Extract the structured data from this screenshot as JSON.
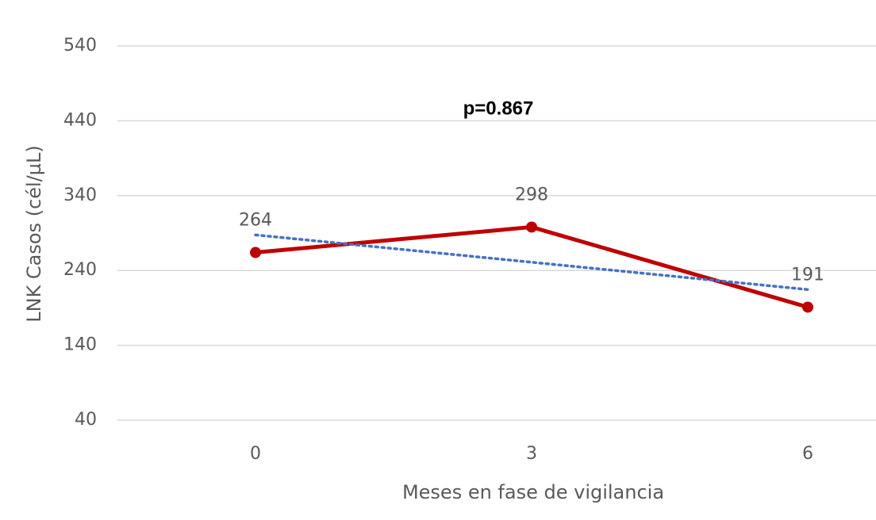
{
  "chart_data": {
    "type": "line",
    "annotation": "p=0.867",
    "x_label": "Meses en fase de vigilancia",
    "y_label": "LNK Casos (cél/µL)",
    "categories": [
      "0",
      "3",
      "6"
    ],
    "values": [
      264,
      298,
      191
    ],
    "color": "#c00000",
    "data_labels": true,
    "trendline": {
      "type": "linear",
      "color": "#4472c4"
    },
    "ylim": [
      40,
      540
    ],
    "yticks": [
      40,
      140,
      240,
      340,
      440,
      540
    ],
    "grid": true
  }
}
